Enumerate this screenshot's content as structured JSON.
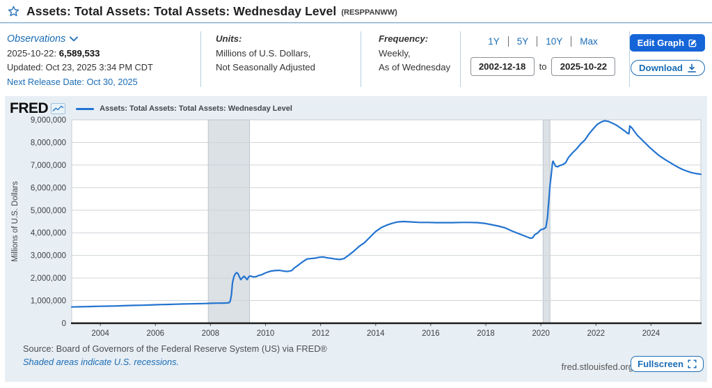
{
  "header": {
    "title": "Assets: Total Assets: Total Assets: Wednesday Level",
    "series_id": "(RESPPANWW)",
    "observations": {
      "label": "Observations",
      "latest_date": "2025-10-22:",
      "latest_value": "6,589,533",
      "updated": "Updated: Oct 23, 2025 3:34 PM CDT",
      "next_release": "Next Release Date: Oct 30, 2025"
    },
    "units": {
      "label": "Units:",
      "line1": "Millions of U.S. Dollars,",
      "line2": "Not Seasonally Adjusted"
    },
    "frequency": {
      "label": "Frequency:",
      "line1": "Weekly,",
      "line2": "As of Wednesday"
    },
    "ranges": [
      "1Y",
      "5Y",
      "10Y",
      "Max"
    ],
    "date_from": "2002-12-18",
    "date_separator": "to",
    "date_to": "2025-10-22",
    "edit_graph_label": "Edit Graph",
    "download_label": "Download"
  },
  "chart": {
    "logo": "FRED",
    "legend": "Assets: Total Assets: Total Assets: Wednesday Level",
    "y_axis_label": "Millions of U.S. Dollars"
  },
  "footer": {
    "source": "Source: Board of Governors of the Federal Reserve System (US) via FRED®",
    "recessions_note": "Shaded areas indicate U.S. recessions.",
    "site": "fred.stlouisfed.org",
    "fullscreen_label": "Fullscreen"
  },
  "colors": {
    "line": "#2273d0",
    "link_blue": "#1a6cb5",
    "edit_button": "#1565d8",
    "card_bg": "#e7eef4",
    "recession_band": "#dce1e5"
  },
  "chart_data": {
    "type": "line",
    "title": "Assets: Total Assets: Total Assets: Wednesday Level",
    "xlabel": "",
    "ylabel": "Millions of U.S. Dollars",
    "ylim": [
      0,
      9000000
    ],
    "y_tick_step": 1000000,
    "y_tick_labels": [
      "0",
      "1,000,000",
      "2,000,000",
      "3,000,000",
      "4,000,000",
      "5,000,000",
      "6,000,000",
      "7,000,000",
      "8,000,000",
      "9,000,000"
    ],
    "xlim": [
      2002.96,
      2025.81
    ],
    "x_ticks": [
      2004,
      2006,
      2008,
      2010,
      2012,
      2014,
      2016,
      2018,
      2020,
      2022,
      2024
    ],
    "grid": true,
    "legend_position": "top-left",
    "recessions": [
      {
        "start": 2007.92,
        "end": 2009.42
      },
      {
        "start": 2020.08,
        "end": 2020.33
      }
    ],
    "series": [
      {
        "name": "Assets: Total Assets: Total Assets: Wednesday Level",
        "color": "#2273d0",
        "points": [
          [
            2002.96,
            718000
          ],
          [
            2003.25,
            728000
          ],
          [
            2003.5,
            735000
          ],
          [
            2003.75,
            742000
          ],
          [
            2004,
            748000
          ],
          [
            2004.25,
            755000
          ],
          [
            2004.5,
            762000
          ],
          [
            2004.75,
            772000
          ],
          [
            2005,
            782000
          ],
          [
            2005.25,
            790000
          ],
          [
            2005.5,
            796000
          ],
          [
            2005.75,
            804000
          ],
          [
            2006,
            818000
          ],
          [
            2006.25,
            826000
          ],
          [
            2006.5,
            832000
          ],
          [
            2006.75,
            840000
          ],
          [
            2007,
            852000
          ],
          [
            2007.25,
            858000
          ],
          [
            2007.5,
            862000
          ],
          [
            2007.75,
            870000
          ],
          [
            2008,
            882000
          ],
          [
            2008.25,
            888000
          ],
          [
            2008.45,
            892000
          ],
          [
            2008.6,
            898000
          ],
          [
            2008.68,
            910000
          ],
          [
            2008.72,
            990000
          ],
          [
            2008.76,
            1250000
          ],
          [
            2008.8,
            1780000
          ],
          [
            2008.85,
            2060000
          ],
          [
            2008.9,
            2180000
          ],
          [
            2008.95,
            2240000
          ],
          [
            2009.0,
            2190000
          ],
          [
            2009.05,
            2060000
          ],
          [
            2009.1,
            1930000
          ],
          [
            2009.16,
            2010000
          ],
          [
            2009.22,
            2080000
          ],
          [
            2009.28,
            2000000
          ],
          [
            2009.33,
            1930000
          ],
          [
            2009.4,
            2070000
          ],
          [
            2009.45,
            2090000
          ],
          [
            2009.55,
            2050000
          ],
          [
            2009.65,
            2060000
          ],
          [
            2009.75,
            2110000
          ],
          [
            2009.85,
            2140000
          ],
          [
            2009.95,
            2200000
          ],
          [
            2010.05,
            2250000
          ],
          [
            2010.2,
            2310000
          ],
          [
            2010.35,
            2330000
          ],
          [
            2010.5,
            2340000
          ],
          [
            2010.65,
            2310000
          ],
          [
            2010.8,
            2290000
          ],
          [
            2010.95,
            2330000
          ],
          [
            2011.05,
            2450000
          ],
          [
            2011.2,
            2580000
          ],
          [
            2011.35,
            2720000
          ],
          [
            2011.5,
            2840000
          ],
          [
            2011.65,
            2860000
          ],
          [
            2011.8,
            2880000
          ],
          [
            2011.95,
            2920000
          ],
          [
            2012.1,
            2930000
          ],
          [
            2012.25,
            2890000
          ],
          [
            2012.4,
            2870000
          ],
          [
            2012.55,
            2840000
          ],
          [
            2012.7,
            2820000
          ],
          [
            2012.85,
            2860000
          ],
          [
            2013.0,
            2990000
          ],
          [
            2013.2,
            3180000
          ],
          [
            2013.4,
            3400000
          ],
          [
            2013.6,
            3570000
          ],
          [
            2013.8,
            3820000
          ],
          [
            2014.0,
            4060000
          ],
          [
            2014.2,
            4230000
          ],
          [
            2014.4,
            4340000
          ],
          [
            2014.6,
            4420000
          ],
          [
            2014.8,
            4480000
          ],
          [
            2015.0,
            4500000
          ],
          [
            2015.3,
            4480000
          ],
          [
            2015.6,
            4460000
          ],
          [
            2015.9,
            4460000
          ],
          [
            2016.2,
            4450000
          ],
          [
            2016.5,
            4450000
          ],
          [
            2016.8,
            4450000
          ],
          [
            2017.1,
            4460000
          ],
          [
            2017.4,
            4460000
          ],
          [
            2017.7,
            4450000
          ],
          [
            2017.95,
            4420000
          ],
          [
            2018.2,
            4360000
          ],
          [
            2018.45,
            4300000
          ],
          [
            2018.7,
            4220000
          ],
          [
            2018.95,
            4080000
          ],
          [
            2019.2,
            3960000
          ],
          [
            2019.45,
            3840000
          ],
          [
            2019.62,
            3760000
          ],
          [
            2019.7,
            3780000
          ],
          [
            2019.78,
            3920000
          ],
          [
            2019.88,
            3990000
          ],
          [
            2020.0,
            4140000
          ],
          [
            2020.1,
            4170000
          ],
          [
            2020.18,
            4240000
          ],
          [
            2020.24,
            4680000
          ],
          [
            2020.28,
            5300000
          ],
          [
            2020.33,
            6080000
          ],
          [
            2020.38,
            6620000
          ],
          [
            2020.42,
            7100000
          ],
          [
            2020.44,
            7170000
          ],
          [
            2020.48,
            7080000
          ],
          [
            2020.53,
            6950000
          ],
          [
            2020.6,
            6920000
          ],
          [
            2020.7,
            6980000
          ],
          [
            2020.8,
            7020000
          ],
          [
            2020.9,
            7100000
          ],
          [
            2021.0,
            7330000
          ],
          [
            2021.15,
            7540000
          ],
          [
            2021.3,
            7720000
          ],
          [
            2021.45,
            7940000
          ],
          [
            2021.6,
            8110000
          ],
          [
            2021.75,
            8380000
          ],
          [
            2021.9,
            8600000
          ],
          [
            2022.05,
            8800000
          ],
          [
            2022.2,
            8910000
          ],
          [
            2022.32,
            8960000
          ],
          [
            2022.45,
            8930000
          ],
          [
            2022.6,
            8850000
          ],
          [
            2022.75,
            8760000
          ],
          [
            2022.9,
            8630000
          ],
          [
            2023.05,
            8500000
          ],
          [
            2023.15,
            8400000
          ],
          [
            2023.2,
            8390000
          ],
          [
            2023.23,
            8730000
          ],
          [
            2023.3,
            8650000
          ],
          [
            2023.4,
            8480000
          ],
          [
            2023.5,
            8320000
          ],
          [
            2023.65,
            8140000
          ],
          [
            2023.8,
            7960000
          ],
          [
            2023.95,
            7780000
          ],
          [
            2024.1,
            7620000
          ],
          [
            2024.25,
            7460000
          ],
          [
            2024.4,
            7330000
          ],
          [
            2024.55,
            7210000
          ],
          [
            2024.7,
            7100000
          ],
          [
            2024.85,
            6990000
          ],
          [
            2025.0,
            6890000
          ],
          [
            2025.15,
            6800000
          ],
          [
            2025.3,
            6730000
          ],
          [
            2025.45,
            6670000
          ],
          [
            2025.6,
            6630000
          ],
          [
            2025.7,
            6610000
          ],
          [
            2025.81,
            6589533
          ]
        ]
      }
    ]
  }
}
